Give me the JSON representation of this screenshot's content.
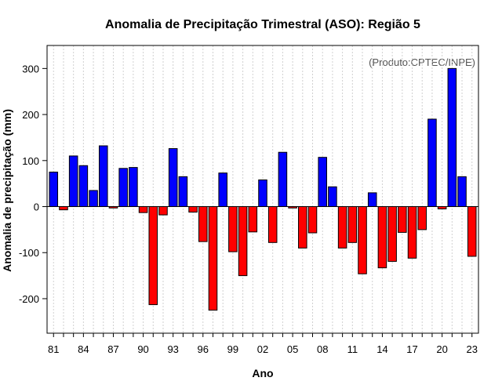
{
  "chart_data": {
    "type": "bar",
    "title": "Anomalia de Precipitação Trimestral (ASO): Região 5",
    "xlabel": "Ano",
    "ylabel": "Anomalia de precipitação (mm)",
    "credit": "(Produto:CPTEC/INPE)",
    "ylim": [
      -275,
      350
    ],
    "yticks": [
      -200,
      -100,
      0,
      100,
      200,
      300
    ],
    "grid": "vertical dotted",
    "positive_color": "#0000ff",
    "negative_color": "#ff0000",
    "x_tick_labels": [
      "81",
      "84",
      "87",
      "90",
      "93",
      "96",
      "99",
      "02",
      "05",
      "08",
      "11",
      "14",
      "17",
      "20",
      "23"
    ],
    "years": [
      1981,
      1982,
      1983,
      1984,
      1985,
      1986,
      1987,
      1988,
      1989,
      1990,
      1991,
      1992,
      1993,
      1994,
      1995,
      1996,
      1997,
      1998,
      1999,
      2000,
      2001,
      2002,
      2003,
      2004,
      2005,
      2006,
      2007,
      2008,
      2009,
      2010,
      2011,
      2012,
      2013,
      2014,
      2015,
      2016,
      2017,
      2018,
      2019,
      2020,
      2021,
      2022,
      2023
    ],
    "values": [
      75,
      -7,
      110,
      89,
      35,
      132,
      -3,
      83,
      85,
      -13,
      -213,
      -18,
      126,
      65,
      -12,
      -76,
      -225,
      73,
      -98,
      -150,
      -55,
      58,
      -78,
      118,
      -3,
      -90,
      -57,
      107,
      43,
      -90,
      -78,
      -146,
      30,
      -133,
      -119,
      -56,
      -112,
      -50,
      190,
      -5,
      300,
      65,
      -108
    ]
  }
}
